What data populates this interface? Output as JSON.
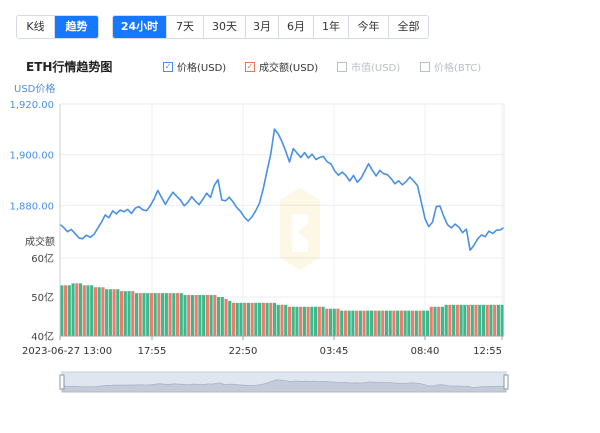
{
  "view_tabs": [
    {
      "label": "K线",
      "active": false
    },
    {
      "label": "趋势",
      "active": true
    }
  ],
  "range_tabs": [
    {
      "label": "24小时",
      "active": true
    },
    {
      "label": "7天",
      "active": false
    },
    {
      "label": "30天",
      "active": false
    },
    {
      "label": "3月",
      "active": false
    },
    {
      "label": "6月",
      "active": false
    },
    {
      "label": "1年",
      "active": false
    },
    {
      "label": "今年",
      "active": false
    },
    {
      "label": "全部",
      "active": false
    }
  ],
  "legend": [
    {
      "label": "价格(USD)",
      "color": "#4a90e2",
      "checked": true
    },
    {
      "label": "成交额(USD)",
      "color": "#e8775c",
      "checked": true
    },
    {
      "label": "市值(USD)",
      "color": "#b9bfc8",
      "checked": false
    },
    {
      "label": "价格(BTC)",
      "color": "#b9bfc8",
      "checked": false
    }
  ],
  "chart_data": {
    "type": "line",
    "title": "ETH行情趋势图",
    "price_axis": {
      "label": "USD价格",
      "ylim": [
        1860,
        1920
      ],
      "ticks": [
        "1,920.00",
        "1,900.00",
        "1,880.00"
      ]
    },
    "volume_axis": {
      "label": "成交额",
      "ylim": [
        40,
        60
      ],
      "ticks": [
        "60亿",
        "50亿",
        "40亿"
      ]
    },
    "x_ticks": [
      "2023-06-27 13:00",
      "17:55",
      "22:50",
      "03:45",
      "08:40",
      "12:55"
    ],
    "price_series": {
      "name": "价格(USD)",
      "color": "#4a90e2",
      "values": [
        1872.5,
        1871.2,
        1869.6,
        1870.5,
        1868.9,
        1867.2,
        1866.8,
        1868.2,
        1867.4,
        1868.5,
        1870.9,
        1873.3,
        1876.2,
        1875.1,
        1877.8,
        1876.6,
        1878.1,
        1877.5,
        1878.4,
        1876.8,
        1878.9,
        1879.5,
        1878.2,
        1877.9,
        1879.8,
        1882.6,
        1885.9,
        1883.1,
        1880.4,
        1882.9,
        1885.2,
        1883.6,
        1882.1,
        1879.8,
        1881.2,
        1883.4,
        1881.6,
        1880.3,
        1882.5,
        1884.8,
        1883.1,
        1887.9,
        1890.1,
        1882.1,
        1881.8,
        1883.2,
        1881.3,
        1879.1,
        1877.6,
        1875.3,
        1873.8,
        1875.4,
        1877.9,
        1880.8,
        1886.4,
        1893.4,
        1900.1,
        1910.1,
        1908.2,
        1905.1,
        1901.3,
        1897.1,
        1902.4,
        1900.6,
        1898.9,
        1900.8,
        1898.7,
        1900.2,
        1898.1,
        1898.9,
        1899.3,
        1897.2,
        1896.4,
        1893.6,
        1891.9,
        1893.1,
        1891.7,
        1889.6,
        1891.8,
        1889.1,
        1890.7,
        1893.5,
        1896.4,
        1893.9,
        1891.6,
        1893.8,
        1892.5,
        1892.1,
        1890.6,
        1888.5,
        1889.7,
        1888.1,
        1889.4,
        1891.2,
        1889.6,
        1887.8,
        1881.4,
        1874.8,
        1871.6,
        1873.4,
        1879.5,
        1879.7,
        1875.6,
        1872.3,
        1871.1,
        1872.6,
        1871.4,
        1869.2,
        1870.6,
        1862.3,
        1864.2,
        1866.8,
        1868.3,
        1867.6,
        1869.8,
        1868.9,
        1870.2,
        1870.3,
        1871.2
      ]
    },
    "volume_series": {
      "name": "成交额(USD)",
      "unit": "亿",
      "values": [
        53,
        53,
        53,
        53.5,
        53.5,
        53.5,
        53,
        53,
        53,
        52.5,
        52.5,
        52.5,
        52,
        52,
        52,
        52,
        51.5,
        51.5,
        51.5,
        51.5,
        51,
        51,
        51,
        51,
        51,
        51,
        51,
        51,
        51,
        51,
        51,
        51,
        51,
        50.5,
        50.5,
        50.5,
        50.5,
        50.5,
        50.5,
        50.5,
        50.5,
        50.5,
        50,
        50,
        49.5,
        49,
        48.5,
        48.5,
        48.5,
        48.5,
        48.5,
        48.5,
        48.5,
        48.5,
        48.5,
        48.5,
        48.5,
        48.5,
        48,
        48,
        48,
        47.5,
        47.5,
        47.5,
        47.5,
        47.5,
        47.5,
        47.5,
        47.5,
        47.5,
        47.5,
        47,
        47,
        47,
        47,
        46.5,
        46.5,
        46.5,
        46.5,
        46.5,
        46.5,
        46.5,
        46.5,
        46.5,
        46.5,
        46.5,
        46.5,
        46.5,
        46.5,
        46.5,
        46.5,
        46.5,
        46.5,
        46.5,
        46.5,
        46.5,
        46.5,
        46.5,
        46.5,
        47.5,
        47.5,
        47.5,
        47.5,
        48,
        48,
        48,
        48,
        48,
        48,
        48,
        48,
        48,
        48,
        48,
        48,
        48,
        48,
        48,
        48
      ]
    },
    "series_colors": {
      "up": "#3db88a",
      "down": "#ee7b6b"
    },
    "grid": true
  }
}
